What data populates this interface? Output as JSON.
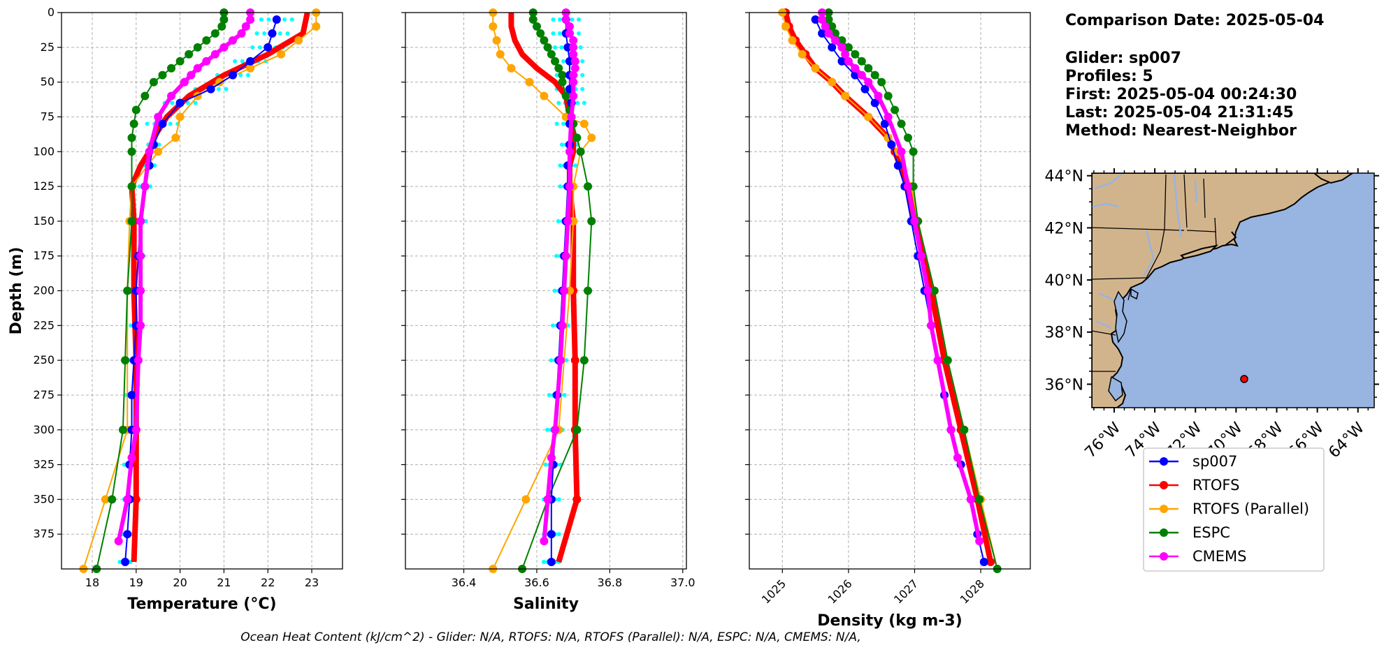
{
  "info": {
    "comparison_date": "Comparison Date: 2025-05-04",
    "glider": "Glider: sp007",
    "profiles": "Profiles: 5",
    "first": "First: 2025-05-04 00:24:30",
    "last": "Last: 2025-05-04 21:31:45",
    "method": "Method: Nearest-Neighbor"
  },
  "footer": "Ocean Heat Content (kJ/cm^2) - Glider: N/A,  RTOFS: N/A,  RTOFS (Parallel): N/A,  ESPC: N/A,  CMEMS: N/A,",
  "colors": {
    "sp007": "#0000ff",
    "rtofs": "#ff0000",
    "rtofs_parallel": "#ffa500",
    "espc": "#008000",
    "cmems": "#ff00ff",
    "glider_profiles": "#00ffff",
    "land": "#d2b48c",
    "ocean": "#98b4e0"
  },
  "legend": [
    "sp007",
    "RTOFS",
    "RTOFS (Parallel)",
    "ESPC",
    "CMEMS"
  ],
  "depth_ticks": [
    "0",
    "25",
    "50",
    "75",
    "100",
    "125",
    "150",
    "175",
    "200",
    "225",
    "250",
    "275",
    "300",
    "325",
    "350",
    "375"
  ],
  "map": {
    "lat_labels": [
      "44°N",
      "42°N",
      "40°N",
      "38°N",
      "36°N"
    ],
    "lon_labels": [
      "76°W",
      "74°W",
      "72°W",
      "70°W",
      "68°W",
      "66°W",
      "64°W"
    ],
    "glider_position": {
      "lon": -69.6,
      "lat": 36.2
    }
  },
  "chart_data": [
    {
      "type": "line",
      "xlabel": "Temperature (°C)",
      "ylabel": "Depth (m)",
      "xlim": [
        17.3,
        23.7
      ],
      "ylim": [
        400,
        0
      ],
      "xticks": [
        "18",
        "19",
        "20",
        "21",
        "22",
        "23"
      ],
      "grid": true,
      "series": [
        {
          "name": "sp007",
          "depth": [
            5,
            15,
            25,
            35,
            45,
            55,
            65,
            80,
            95,
            110,
            125,
            150,
            175,
            200,
            225,
            250,
            275,
            300,
            325,
            350,
            375,
            395
          ],
          "values": [
            22.2,
            22.1,
            22.0,
            21.6,
            21.2,
            20.7,
            20.0,
            19.6,
            19.4,
            19.3,
            19.2,
            19.1,
            19.05,
            19.0,
            19.0,
            18.95,
            18.9,
            18.9,
            18.85,
            18.85,
            18.8,
            18.75
          ]
        },
        {
          "name": "RTOFS",
          "depth": [
            0,
            15,
            30,
            45,
            60,
            75,
            90,
            100,
            110,
            125,
            150,
            200,
            250,
            300,
            350,
            395
          ],
          "values": [
            22.9,
            22.8,
            22.0,
            21.0,
            20.2,
            19.7,
            19.4,
            19.3,
            19.1,
            18.9,
            18.95,
            18.95,
            19.0,
            19.0,
            19.0,
            18.95
          ]
        },
        {
          "name": "RTOFS (Parallel)",
          "depth": [
            0,
            10,
            20,
            30,
            40,
            50,
            60,
            75,
            90,
            100,
            125,
            150,
            200,
            300,
            350,
            400
          ],
          "values": [
            23.1,
            23.1,
            22.7,
            22.3,
            21.6,
            20.9,
            20.4,
            20.0,
            19.9,
            19.5,
            18.9,
            18.85,
            18.8,
            18.8,
            18.3,
            17.8
          ]
        },
        {
          "name": "ESPC",
          "depth": [
            0,
            5,
            10,
            15,
            20,
            25,
            30,
            35,
            40,
            45,
            50,
            60,
            70,
            80,
            90,
            100,
            125,
            150,
            200,
            250,
            300,
            350,
            400
          ],
          "values": [
            21.0,
            21.0,
            20.95,
            20.8,
            20.6,
            20.4,
            20.2,
            20.0,
            19.8,
            19.6,
            19.4,
            19.2,
            19.0,
            18.95,
            18.9,
            18.9,
            18.9,
            18.9,
            18.8,
            18.75,
            18.7,
            18.45,
            18.1
          ]
        },
        {
          "name": "CMEMS",
          "depth": [
            0,
            5,
            10,
            15,
            20,
            25,
            30,
            35,
            40,
            45,
            50,
            60,
            75,
            100,
            125,
            150,
            175,
            200,
            225,
            250,
            300,
            320,
            350,
            380
          ],
          "values": [
            21.6,
            21.6,
            21.5,
            21.4,
            21.2,
            21.0,
            20.8,
            20.6,
            20.4,
            20.25,
            20.1,
            19.8,
            19.5,
            19.3,
            19.2,
            19.1,
            19.1,
            19.1,
            19.1,
            19.05,
            19.0,
            18.9,
            18.8,
            18.6
          ]
        }
      ]
    },
    {
      "type": "line",
      "xlabel": "Salinity",
      "ylabel": "",
      "xlim": [
        36.24,
        37.01
      ],
      "ylim": [
        400,
        0
      ],
      "xticks": [
        "36.4",
        "36.6",
        "36.8",
        "37.0"
      ],
      "grid": true,
      "series": [
        {
          "name": "sp007",
          "depth": [
            5,
            15,
            25,
            35,
            45,
            55,
            65,
            80,
            95,
            110,
            125,
            150,
            175,
            200,
            225,
            250,
            275,
            300,
            325,
            350,
            375,
            395
          ],
          "values": [
            36.68,
            36.68,
            36.685,
            36.69,
            36.69,
            36.69,
            36.695,
            36.69,
            36.69,
            36.685,
            36.685,
            36.68,
            36.675,
            36.67,
            36.665,
            36.66,
            36.655,
            36.65,
            36.645,
            36.64,
            36.64,
            36.64
          ]
        },
        {
          "name": "RTOFS",
          "depth": [
            0,
            10,
            20,
            30,
            40,
            50,
            60,
            75,
            90,
            100,
            110,
            125,
            150,
            200,
            250,
            300,
            350,
            395
          ],
          "values": [
            36.53,
            36.53,
            36.54,
            36.56,
            36.6,
            36.65,
            36.68,
            36.69,
            36.7,
            36.7,
            36.69,
            36.69,
            36.7,
            36.7,
            36.705,
            36.705,
            36.71,
            36.66
          ]
        },
        {
          "name": "RTOFS (Parallel)",
          "depth": [
            0,
            10,
            20,
            30,
            40,
            50,
            60,
            75,
            80,
            90,
            100,
            125,
            150,
            200,
            300,
            350,
            400
          ],
          "values": [
            36.48,
            36.48,
            36.49,
            36.5,
            36.53,
            36.58,
            36.62,
            36.68,
            36.73,
            36.75,
            36.72,
            36.7,
            36.7,
            36.69,
            36.66,
            36.57,
            36.48
          ]
        },
        {
          "name": "ESPC",
          "depth": [
            0,
            5,
            10,
            15,
            20,
            25,
            30,
            35,
            40,
            45,
            50,
            60,
            70,
            80,
            90,
            100,
            125,
            150,
            200,
            250,
            300,
            350,
            400
          ],
          "values": [
            36.59,
            36.59,
            36.6,
            36.61,
            36.62,
            36.63,
            36.64,
            36.65,
            36.66,
            36.67,
            36.67,
            36.68,
            36.69,
            36.7,
            36.71,
            36.72,
            36.74,
            36.75,
            36.74,
            36.73,
            36.71,
            36.63,
            36.56
          ]
        },
        {
          "name": "CMEMS",
          "depth": [
            0,
            5,
            10,
            15,
            20,
            25,
            30,
            35,
            40,
            45,
            50,
            60,
            75,
            100,
            125,
            150,
            175,
            200,
            225,
            250,
            300,
            320,
            350,
            380
          ],
          "values": [
            36.68,
            36.68,
            36.69,
            36.69,
            36.7,
            36.7,
            36.7,
            36.705,
            36.705,
            36.7,
            36.7,
            36.7,
            36.695,
            36.69,
            36.69,
            36.685,
            36.68,
            36.675,
            36.67,
            36.665,
            36.65,
            36.64,
            36.63,
            36.62
          ]
        }
      ]
    },
    {
      "type": "line",
      "xlabel": "Density (kg m-3)",
      "ylabel": "",
      "xlim": [
        1024.5,
        1028.75
      ],
      "ylim": [
        400,
        0
      ],
      "xticks": [
        "1025",
        "1026",
        "1027",
        "1028"
      ],
      "grid": true,
      "series": [
        {
          "name": "sp007",
          "depth": [
            5,
            15,
            25,
            35,
            45,
            55,
            65,
            80,
            95,
            110,
            125,
            150,
            175,
            200,
            225,
            250,
            275,
            300,
            325,
            350,
            375,
            395
          ],
          "values": [
            1025.5,
            1025.6,
            1025.75,
            1025.9,
            1026.1,
            1026.25,
            1026.4,
            1026.55,
            1026.65,
            1026.75,
            1026.85,
            1026.95,
            1027.05,
            1027.15,
            1027.25,
            1027.35,
            1027.45,
            1027.55,
            1027.7,
            1027.85,
            1027.95,
            1028.05
          ]
        },
        {
          "name": "RTOFS",
          "depth": [
            0,
            10,
            20,
            30,
            40,
            50,
            60,
            75,
            90,
            100,
            125,
            150,
            200,
            250,
            300,
            350,
            395
          ],
          "values": [
            1025.05,
            1025.1,
            1025.2,
            1025.35,
            1025.5,
            1025.75,
            1025.95,
            1026.3,
            1026.6,
            1026.7,
            1026.9,
            1027.0,
            1027.25,
            1027.45,
            1027.7,
            1027.95,
            1028.15
          ]
        },
        {
          "name": "RTOFS (Parallel)",
          "depth": [
            0,
            10,
            20,
            30,
            40,
            50,
            60,
            75,
            90,
            100,
            125,
            150,
            200,
            250,
            300,
            350,
            400
          ],
          "values": [
            1025.0,
            1025.05,
            1025.15,
            1025.3,
            1025.5,
            1025.75,
            1025.95,
            1026.3,
            1026.6,
            1026.75,
            1026.95,
            1027.05,
            1027.3,
            1027.5,
            1027.75,
            1028.0,
            1028.25
          ]
        },
        {
          "name": "ESPC",
          "depth": [
            0,
            5,
            10,
            15,
            20,
            25,
            30,
            35,
            40,
            45,
            50,
            60,
            70,
            80,
            90,
            100,
            125,
            150,
            200,
            250,
            300,
            350,
            400
          ],
          "values": [
            1025.7,
            1025.7,
            1025.75,
            1025.8,
            1025.9,
            1026.0,
            1026.1,
            1026.2,
            1026.3,
            1026.4,
            1026.5,
            1026.6,
            1026.7,
            1026.8,
            1026.9,
            1026.98,
            1026.98,
            1027.05,
            1027.3,
            1027.5,
            1027.75,
            1027.98,
            1028.25
          ]
        },
        {
          "name": "CMEMS",
          "depth": [
            0,
            5,
            10,
            15,
            20,
            25,
            30,
            35,
            40,
            45,
            50,
            60,
            75,
            100,
            125,
            150,
            175,
            200,
            225,
            250,
            300,
            320,
            350,
            380
          ],
          "values": [
            1025.6,
            1025.6,
            1025.65,
            1025.7,
            1025.8,
            1025.9,
            1025.95,
            1026.0,
            1026.1,
            1026.2,
            1026.3,
            1026.45,
            1026.6,
            1026.8,
            1026.9,
            1027.0,
            1027.1,
            1027.2,
            1027.25,
            1027.35,
            1027.55,
            1027.65,
            1027.85,
            1027.98
          ]
        }
      ]
    }
  ]
}
